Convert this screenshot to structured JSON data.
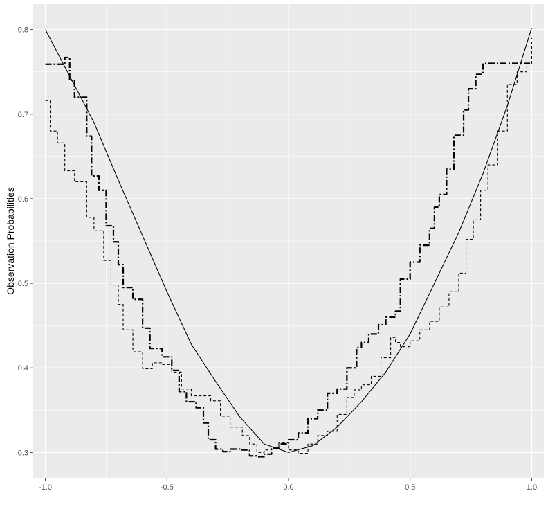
{
  "chart_data": {
    "type": "line",
    "title": "",
    "xlabel": "",
    "ylabel": "Observation Probabilities",
    "xlim": [
      -1.05,
      1.05
    ],
    "ylim": [
      0.27,
      0.83
    ],
    "x_ticks": [
      -1.0,
      -0.5,
      0.0,
      0.5,
      1.0
    ],
    "x_tick_labels": [
      "-1.0",
      "-0.5",
      "0.0",
      "0.5",
      "1.0"
    ],
    "y_ticks": [
      0.3,
      0.4,
      0.5,
      0.6,
      0.7,
      0.8
    ],
    "y_tick_labels": [
      "0.3",
      "0.4",
      "0.5",
      "0.6",
      "0.7",
      "0.8"
    ],
    "grid": true,
    "legend": "none",
    "colors": {
      "panel": "#ebebeb",
      "grid": "#ffffff",
      "line": "#000000",
      "tick": "#4d4d4d"
    },
    "series": [
      {
        "style": "solid",
        "step": false,
        "x": [
          -1.0,
          -0.9,
          -0.8,
          -0.7,
          -0.6,
          -0.5,
          -0.4,
          -0.3,
          -0.2,
          -0.1,
          0.0,
          0.1,
          0.2,
          0.3,
          0.4,
          0.5,
          0.6,
          0.7,
          0.8,
          0.9,
          1.0
        ],
        "y": [
          0.8,
          0.745,
          0.69,
          0.622,
          0.556,
          0.49,
          0.428,
          0.384,
          0.342,
          0.31,
          0.3,
          0.308,
          0.33,
          0.36,
          0.395,
          0.44,
          0.5,
          0.56,
          0.63,
          0.71,
          0.802
        ]
      },
      {
        "style": "dashdot",
        "step": true,
        "x": [
          -1.0,
          -0.92,
          -0.9,
          -0.88,
          -0.83,
          -0.81,
          -0.78,
          -0.75,
          -0.72,
          -0.7,
          -0.68,
          -0.64,
          -0.6,
          -0.57,
          -0.52,
          -0.48,
          -0.45,
          -0.42,
          -0.38,
          -0.35,
          -0.33,
          -0.3,
          -0.27,
          -0.24,
          -0.2,
          -0.16,
          -0.13,
          -0.1,
          -0.07,
          -0.04,
          0.0,
          0.04,
          0.08,
          0.12,
          0.16,
          0.2,
          0.24,
          0.28,
          0.3,
          0.33,
          0.37,
          0.4,
          0.44,
          0.46,
          0.5,
          0.54,
          0.58,
          0.6,
          0.62,
          0.65,
          0.68,
          0.72,
          0.74,
          0.77,
          0.8,
          0.83,
          0.86,
          0.89,
          0.93,
          0.96,
          1.0
        ],
        "y": [
          0.759,
          0.767,
          0.74,
          0.72,
          0.674,
          0.627,
          0.61,
          0.568,
          0.549,
          0.522,
          0.495,
          0.481,
          0.447,
          0.423,
          0.413,
          0.397,
          0.372,
          0.36,
          0.353,
          0.335,
          0.315,
          0.304,
          0.301,
          0.304,
          0.303,
          0.296,
          0.295,
          0.298,
          0.305,
          0.31,
          0.315,
          0.323,
          0.34,
          0.35,
          0.37,
          0.375,
          0.4,
          0.424,
          0.43,
          0.44,
          0.451,
          0.46,
          0.467,
          0.505,
          0.525,
          0.545,
          0.565,
          0.59,
          0.605,
          0.635,
          0.675,
          0.705,
          0.73,
          0.747,
          0.76,
          0.76,
          0.76,
          0.76,
          0.76,
          0.76,
          0.76
        ]
      },
      {
        "style": "dashed",
        "step": true,
        "x": [
          -1.0,
          -0.98,
          -0.95,
          -0.92,
          -0.88,
          -0.83,
          -0.8,
          -0.76,
          -0.73,
          -0.7,
          -0.68,
          -0.64,
          -0.6,
          -0.56,
          -0.52,
          -0.48,
          -0.44,
          -0.4,
          -0.36,
          -0.32,
          -0.28,
          -0.24,
          -0.19,
          -0.16,
          -0.13,
          -0.1,
          -0.07,
          -0.04,
          0.0,
          0.04,
          0.08,
          0.12,
          0.16,
          0.2,
          0.24,
          0.27,
          0.3,
          0.34,
          0.38,
          0.42,
          0.44,
          0.46,
          0.5,
          0.54,
          0.58,
          0.62,
          0.66,
          0.7,
          0.73,
          0.76,
          0.79,
          0.82,
          0.86,
          0.9,
          0.94,
          0.98,
          1.0
        ],
        "y": [
          0.716,
          0.68,
          0.666,
          0.633,
          0.62,
          0.578,
          0.562,
          0.527,
          0.498,
          0.475,
          0.445,
          0.419,
          0.399,
          0.406,
          0.404,
          0.395,
          0.375,
          0.367,
          0.367,
          0.361,
          0.343,
          0.33,
          0.32,
          0.31,
          0.3,
          0.303,
          0.306,
          0.312,
          0.303,
          0.299,
          0.31,
          0.32,
          0.325,
          0.345,
          0.365,
          0.374,
          0.38,
          0.39,
          0.412,
          0.436,
          0.43,
          0.425,
          0.432,
          0.445,
          0.455,
          0.472,
          0.49,
          0.512,
          0.552,
          0.575,
          0.61,
          0.64,
          0.68,
          0.735,
          0.75,
          0.76,
          0.79
        ]
      }
    ]
  }
}
